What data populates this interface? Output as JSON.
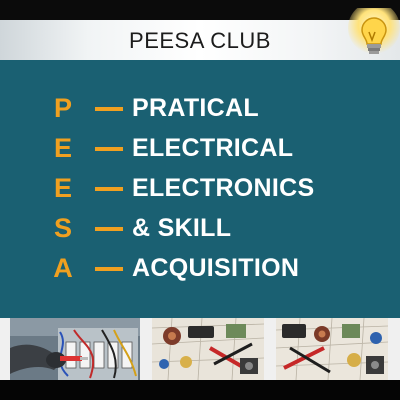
{
  "header": {
    "title": "PEESA CLUB"
  },
  "acronym": [
    {
      "letter": "P",
      "word": "PRATICAL"
    },
    {
      "letter": "E",
      "word": "ELECTRICAL"
    },
    {
      "letter": "E",
      "word": "ELECTRONICS"
    },
    {
      "letter": "S",
      "word": "& SKILL"
    },
    {
      "letter": "A",
      "word": "ACQUISITION"
    }
  ],
  "colors": {
    "panel": "#1a6072",
    "accent": "#f0a020",
    "word": "#ffffff"
  },
  "icons": [
    "lightbulb-icon"
  ],
  "photos": [
    "electrician-wiring-photo",
    "electronic-components-photo",
    "electronic-components-photo"
  ]
}
